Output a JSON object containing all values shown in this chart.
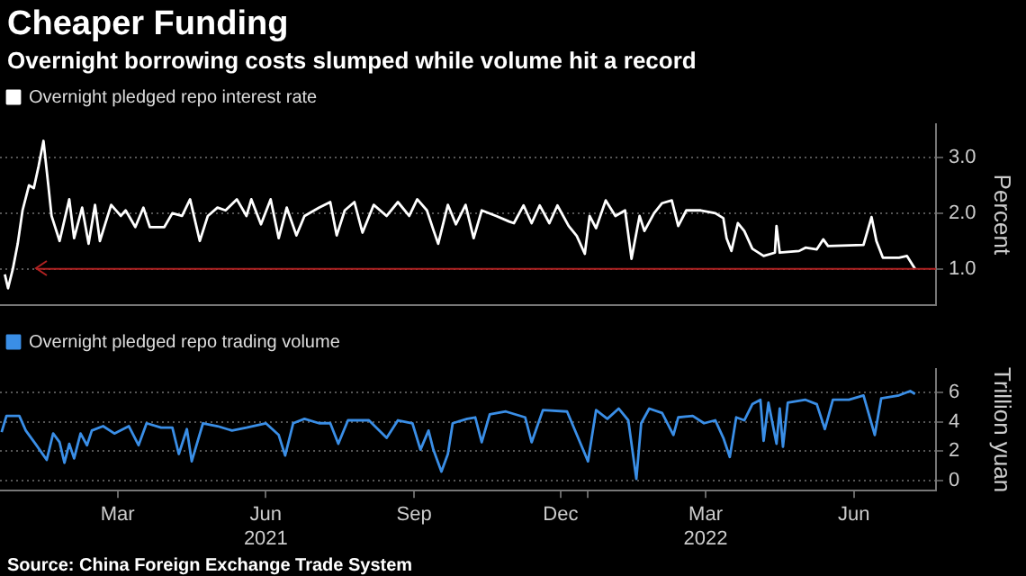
{
  "chart_data": [
    {
      "type": "line",
      "title": "Cheaper Funding",
      "subtitle": "Overnight borrowing costs slumped while volume hit a record",
      "ylabel": "Percent",
      "xlim": [
        "2021-01-01",
        "2022-08-05"
      ],
      "ylim": [
        0.35,
        3.6
      ],
      "yticks": [
        {
          "value": 1,
          "label": "1.0"
        },
        {
          "value": 2,
          "label": "2.0"
        },
        {
          "value": 3,
          "label": "3.0"
        }
      ],
      "grid": "y",
      "legend": "top left",
      "tick_labels": "y",
      "marker": "none",
      "ref_lines": [
        {
          "axis": "y",
          "value": 1,
          "color": "#b22222"
        }
      ],
      "series": [
        {
          "name": "Overnight pledged repo interest rate",
          "color": "#ffffff",
          "x": [
            "2021-01-04",
            "2021-01-06",
            "2021-01-09",
            "2021-01-12",
            "2021-01-15",
            "2021-01-19",
            "2021-01-22",
            "2021-01-25",
            "2021-01-28",
            "2021-01-31",
            "2021-02-02",
            "2021-02-07",
            "2021-02-13",
            "2021-02-16",
            "2021-02-21",
            "2021-02-25",
            "2021-03-01",
            "2021-03-04",
            "2021-03-11",
            "2021-03-17",
            "2021-03-20",
            "2021-03-26",
            "2021-03-31",
            "2021-04-04",
            "2021-04-13",
            "2021-04-18",
            "2021-04-24",
            "2021-04-29",
            "2021-05-05",
            "2021-05-10",
            "2021-05-16",
            "2021-05-21",
            "2021-05-28",
            "2021-06-03",
            "2021-06-06",
            "2021-06-12",
            "2021-06-18",
            "2021-06-23",
            "2021-06-28",
            "2021-07-04",
            "2021-07-09",
            "2021-07-18",
            "2021-07-25",
            "2021-07-29",
            "2021-08-03",
            "2021-08-09",
            "2021-08-14",
            "2021-08-21",
            "2021-08-29",
            "2021-09-05",
            "2021-09-12",
            "2021-09-17",
            "2021-09-23",
            "2021-09-27",
            "2021-09-30",
            "2021-10-06",
            "2021-10-11",
            "2021-10-17",
            "2021-10-22",
            "2021-10-27",
            "2021-11-05",
            "2021-11-13",
            "2021-11-16",
            "2021-11-22",
            "2021-11-27",
            "2021-12-02",
            "2021-12-08",
            "2021-12-13",
            "2021-12-20",
            "2021-12-25",
            "2021-12-30",
            "2022-01-02",
            "2022-01-06",
            "2022-01-12",
            "2022-01-18",
            "2022-01-24",
            "2022-01-28",
            "2022-02-02",
            "2022-02-05",
            "2022-02-11",
            "2022-02-16",
            "2022-02-22",
            "2022-02-26",
            "2022-03-03",
            "2022-03-12",
            "2022-03-21",
            "2022-03-26",
            "2022-03-28",
            "2022-03-31",
            "2022-04-04",
            "2022-04-08",
            "2022-04-13",
            "2022-04-20",
            "2022-04-27",
            "2022-04-28",
            "2022-04-30",
            "2022-05-12",
            "2022-05-16",
            "2022-05-23",
            "2022-05-27",
            "2022-05-30",
            "2022-06-21",
            "2022-06-26",
            "2022-06-29",
            "2022-07-03",
            "2022-07-13",
            "2022-07-18",
            "2022-07-23"
          ],
          "values": [
            0.9,
            0.65,
            1.0,
            1.45,
            2.05,
            2.5,
            2.45,
            2.85,
            3.3,
            2.5,
            1.95,
            1.5,
            2.25,
            1.55,
            2.1,
            1.45,
            2.15,
            1.5,
            2.15,
            1.95,
            2.05,
            1.75,
            2.1,
            1.75,
            1.75,
            2.0,
            1.95,
            2.25,
            1.5,
            1.95,
            2.1,
            2.05,
            2.25,
            1.95,
            2.25,
            1.8,
            2.25,
            1.55,
            2.1,
            1.6,
            1.95,
            2.1,
            2.2,
            1.6,
            2.05,
            2.2,
            1.65,
            2.15,
            1.95,
            2.2,
            1.95,
            2.25,
            2.05,
            1.7,
            1.45,
            2.15,
            1.8,
            2.15,
            1.55,
            2.05,
            1.95,
            1.85,
            1.82,
            2.14,
            1.82,
            2.14,
            1.82,
            2.14,
            1.77,
            1.59,
            1.27,
            1.95,
            1.73,
            2.23,
            1.95,
            2.05,
            1.18,
            1.95,
            1.68,
            2.0,
            2.18,
            2.23,
            1.77,
            2.05,
            2.05,
            2.0,
            1.91,
            1.55,
            1.32,
            1.82,
            1.68,
            1.36,
            1.23,
            1.29,
            1.77,
            1.29,
            1.32,
            1.38,
            1.35,
            1.53,
            1.41,
            1.43,
            1.93,
            1.5,
            1.2,
            1.2,
            1.23,
            1.0
          ]
        }
      ]
    },
    {
      "type": "line",
      "ylabel": "Trillion yuan",
      "xlim": [
        "2021-01-01",
        "2022-08-05"
      ],
      "ylim": [
        -0.7,
        7.6
      ],
      "yticks": [
        0,
        2,
        4,
        6
      ],
      "xticks": [
        {
          "value": "2021-03-15",
          "label": "Mar"
        },
        {
          "value": "2021-06-15",
          "label": "Jun\n2021"
        },
        {
          "value": "2021-09-15",
          "label": "Sep"
        },
        {
          "value": "2021-12-15",
          "label": "Dec"
        },
        {
          "value": "2022-01-01",
          "label": null
        },
        {
          "value": "2022-03-15",
          "label": "Mar\n2022"
        },
        {
          "value": "2022-06-15",
          "label": "Jun"
        }
      ],
      "grid": "y",
      "legend": "top left",
      "marker": "none",
      "annotations": [
        "Source: China Foreign Exchange Trade System"
      ],
      "series": [
        {
          "name": "Overnight pledged repo trading volume",
          "color": "#3a8ee6",
          "x": [
            "2021-01-02",
            "2021-01-05",
            "2021-01-13",
            "2021-01-17",
            "2021-01-23",
            "2021-01-30",
            "2021-02-03",
            "2021-02-07",
            "2021-02-10",
            "2021-02-13",
            "2021-02-16",
            "2021-02-20",
            "2021-02-24",
            "2021-02-27",
            "2021-03-06",
            "2021-03-13",
            "2021-03-22",
            "2021-03-28",
            "2021-04-02",
            "2021-04-11",
            "2021-04-18",
            "2021-04-22",
            "2021-04-27",
            "2021-04-30",
            "2021-05-07",
            "2021-05-16",
            "2021-05-25",
            "2021-06-03",
            "2021-06-15",
            "2021-06-23",
            "2021-06-27",
            "2021-07-02",
            "2021-07-09",
            "2021-07-18",
            "2021-07-25",
            "2021-07-30",
            "2021-08-05",
            "2021-08-18",
            "2021-08-29",
            "2021-09-05",
            "2021-09-14",
            "2021-09-19",
            "2021-09-24",
            "2021-09-27",
            "2021-10-02",
            "2021-10-06",
            "2021-10-09",
            "2021-10-18",
            "2021-10-23",
            "2021-10-27",
            "2021-11-01",
            "2021-11-11",
            "2021-11-23",
            "2021-11-27",
            "2021-12-04",
            "2021-12-19",
            "2022-01-01",
            "2022-01-06",
            "2022-01-13",
            "2022-01-20",
            "2022-01-26",
            "2022-01-31",
            "2022-02-03",
            "2022-02-08",
            "2022-02-16",
            "2022-02-23",
            "2022-02-26",
            "2022-03-07",
            "2022-03-14",
            "2022-03-21",
            "2022-03-26",
            "2022-03-30",
            "2022-04-03",
            "2022-04-08",
            "2022-04-13",
            "2022-04-18",
            "2022-04-20",
            "2022-04-23",
            "2022-04-28",
            "2022-04-30",
            "2022-05-02",
            "2022-05-05",
            "2022-05-16",
            "2022-05-23",
            "2022-05-28",
            "2022-06-02",
            "2022-06-12",
            "2022-06-21",
            "2022-06-28",
            "2022-07-02",
            "2022-07-13",
            "2022-07-20",
            "2022-07-23"
          ],
          "values": [
            3.3,
            4.4,
            4.4,
            3.4,
            2.5,
            1.4,
            3.2,
            2.6,
            1.2,
            2.5,
            1.5,
            3.2,
            2.4,
            3.4,
            3.7,
            3.2,
            3.7,
            2.4,
            3.9,
            3.6,
            3.6,
            1.8,
            3.5,
            1.3,
            3.9,
            3.7,
            3.4,
            3.6,
            3.9,
            3.1,
            1.7,
            3.9,
            4.2,
            3.9,
            3.9,
            2.5,
            4.1,
            4.1,
            2.9,
            4.1,
            3.9,
            2.1,
            3.4,
            2.1,
            0.6,
            1.8,
            3.9,
            4.2,
            4.3,
            2.6,
            4.5,
            4.7,
            4.3,
            2.6,
            4.8,
            4.7,
            1.3,
            4.8,
            4.2,
            4.9,
            4.1,
            0.1,
            3.9,
            4.9,
            4.6,
            3.1,
            4.3,
            4.4,
            3.9,
            4.1,
            2.9,
            1.6,
            4.3,
            4.1,
            5.2,
            5.5,
            2.7,
            5.3,
            2.5,
            4.9,
            2.3,
            5.3,
            5.5,
            5.2,
            3.5,
            5.5,
            5.5,
            5.8,
            3.1,
            5.6,
            5.8,
            6.1,
            5.9
          ]
        }
      ]
    }
  ]
}
